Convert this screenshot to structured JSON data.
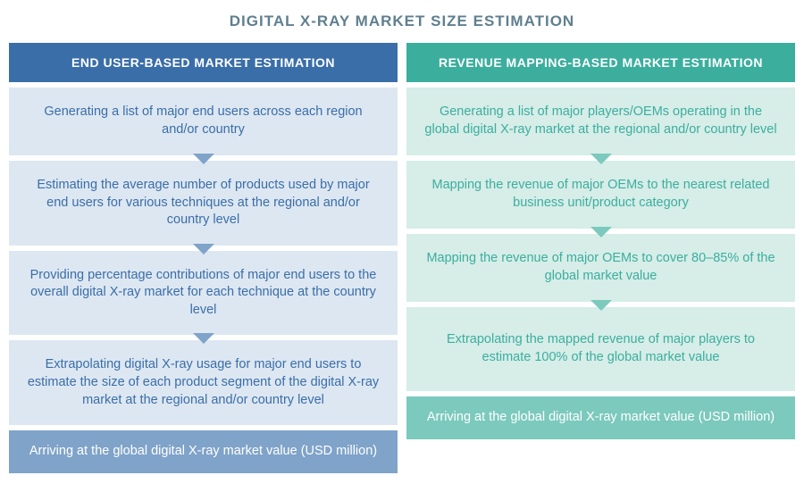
{
  "title": "DIGITAL X-RAY MARKET SIZE ESTIMATION",
  "title_color": "#5f7f8f",
  "left": {
    "header": "END USER-BASED MARKET ESTIMATION",
    "header_bg": "#3a6ea8",
    "step_bg": "#dde7f2",
    "step_color": "#3a6ea8",
    "arrow_color": "#7fa3c9",
    "final_bg": "#7fa3c9",
    "steps": [
      "Generating a list of major end users across each region and/or country",
      "Estimating the average number of products used by major end users for various techniques at the regional and/or country level",
      "Providing percentage contributions of major end users to the overall digital X-ray market for each technique at the country level",
      "Extrapolating digital X-ray usage for major end users to estimate the size of each product segment of the digital X-ray market at the regional and/or country level"
    ],
    "final": "Arriving at the global digital X-ray market value (USD million)"
  },
  "right": {
    "header": "REVENUE MAPPING-BASED MARKET ESTIMATION",
    "header_bg": "#3cae9e",
    "step_bg": "#d6ede8",
    "step_color": "#3cae9e",
    "arrow_color": "#7cc9bd",
    "final_bg": "#7cc9bd",
    "steps": [
      "Generating a list of major players/OEMs operating in the global digital X-ray market at the regional and/or country level",
      "Mapping the revenue of major OEMs to the nearest related business unit/product category",
      "Mapping the revenue of major OEMs to cover 80–85% of the global market value",
      "Extrapolating the mapped revenue of major players to estimate 100% of the global market value"
    ],
    "final": "Arriving at the global digital X-ray market value (USD million)"
  }
}
